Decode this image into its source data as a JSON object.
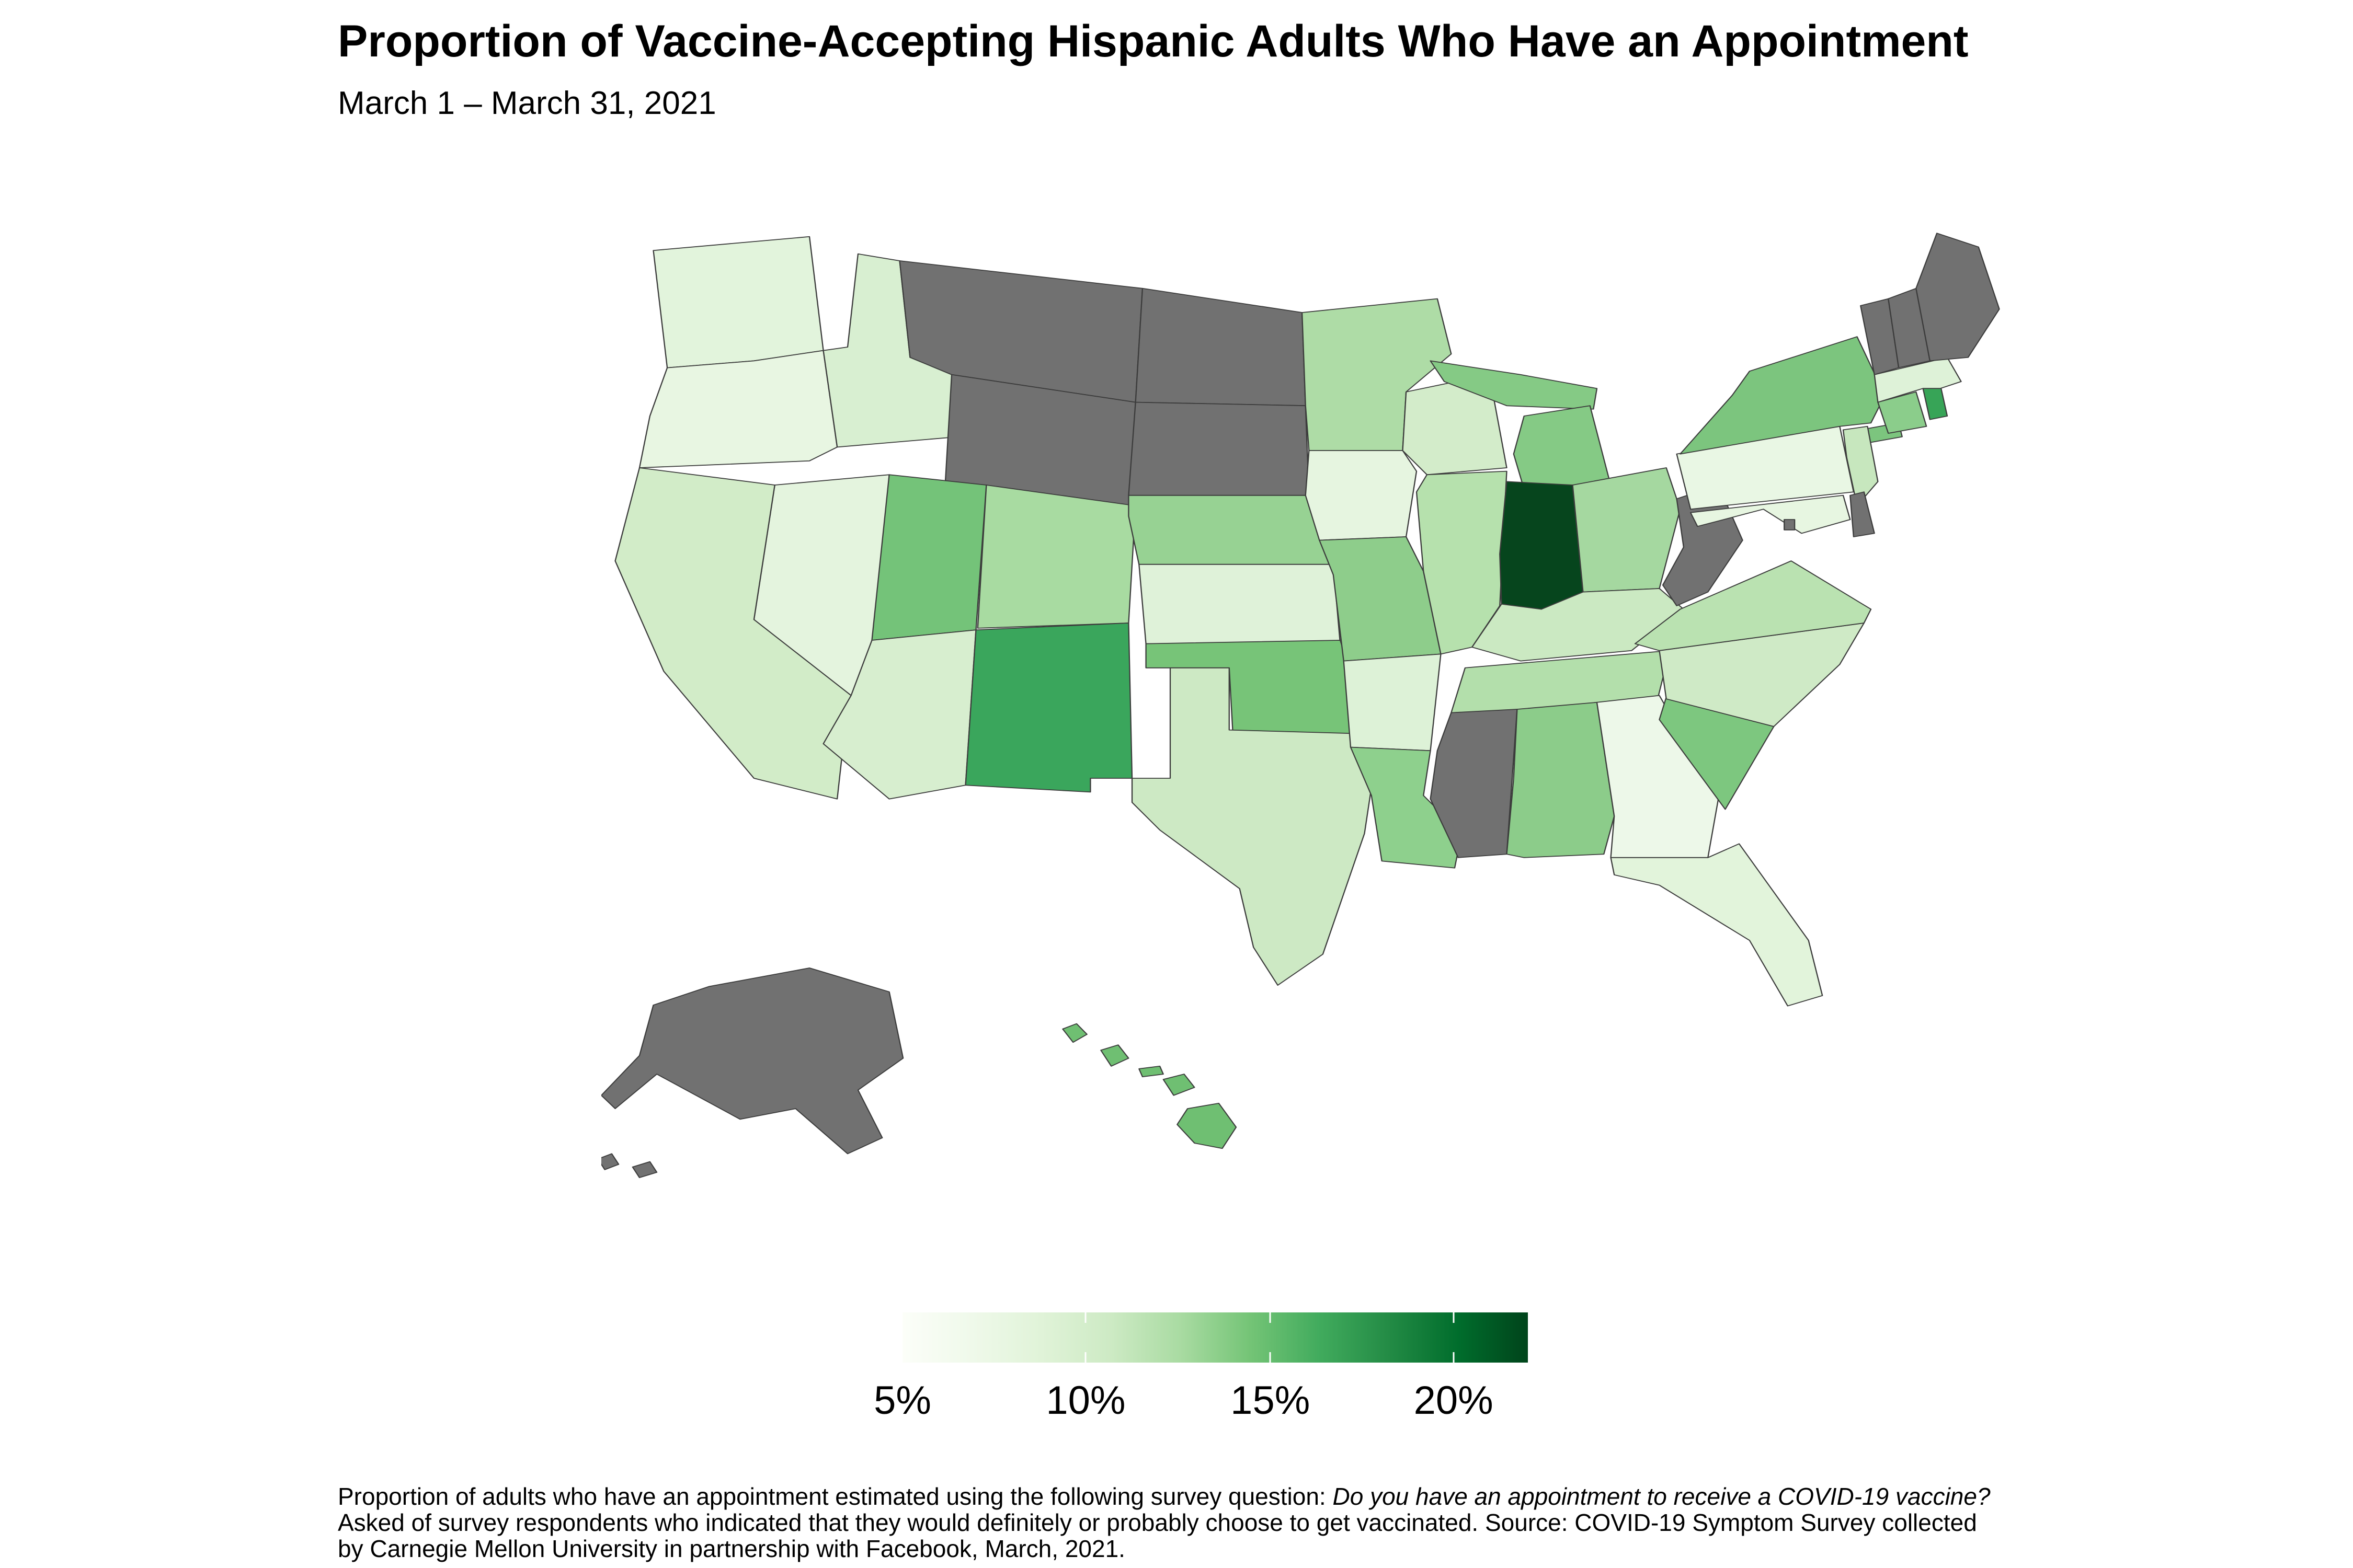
{
  "header": {
    "title": "Proportion of Vaccine-Accepting Hispanic Adults Who Have an Appointment",
    "subtitle": "March 1 – March 31, 2021"
  },
  "legend": {
    "min_value": 5,
    "max_value": 22,
    "unit": "%",
    "ticks": [
      {
        "label": "5%",
        "position_pct": 0,
        "show_mark": false
      },
      {
        "label": "10%",
        "position_pct": 29.3,
        "show_mark": true
      },
      {
        "label": "15%",
        "position_pct": 58.8,
        "show_mark": true
      },
      {
        "label": "20%",
        "position_pct": 88.1,
        "show_mark": true
      }
    ],
    "gradient": [
      "#fcfef9",
      "#eff9ea",
      "#e0f3d8",
      "#cdeac4",
      "#a9dba2",
      "#74c476",
      "#41ab5d",
      "#238b45",
      "#006d2c",
      "#00441b"
    ],
    "na_color": "#717171",
    "border_color": "#3c3c3c"
  },
  "footnote": {
    "line1_prefix": "Proportion of adults who have an appointment estimated using the following survey question: ",
    "line1_italic": "Do you have an appointment to receive a COVID-19 vaccine?",
    "line2": "Asked of survey respondents who indicated that they would definitely or probably choose to get vaccinated. Source: COVID-19 Symptom Survey collected",
    "line3": "by Carnegie Mellon University in partnership with Facebook, March, 2021."
  },
  "chart_data": {
    "type": "heatmap",
    "subtype": "us-state-choropleth",
    "title": "Proportion of Vaccine-Accepting Hispanic Adults Who Have an Appointment",
    "subtitle": "March 1 – March 31, 2021",
    "value_unit": "percent",
    "value_range": [
      5,
      22
    ],
    "legend_position": "bottom-center",
    "no_data_states_color": "#717171",
    "states": [
      {
        "abbr": "WA",
        "name": "Washington",
        "value": 7.3,
        "color": "#e2f4dc"
      },
      {
        "abbr": "OR",
        "name": "Oregon",
        "value": 7.0,
        "color": "#e8f6e2"
      },
      {
        "abbr": "CA",
        "name": "California",
        "value": 9.0,
        "color": "#d2ecc8"
      },
      {
        "abbr": "NV",
        "name": "Nevada",
        "value": 7.2,
        "color": "#e4f4de"
      },
      {
        "abbr": "ID",
        "name": "Idaho",
        "value": 8.6,
        "color": "#d8efd1"
      },
      {
        "abbr": "MT",
        "name": "Montana",
        "value": null,
        "color": null
      },
      {
        "abbr": "WY",
        "name": "Wyoming",
        "value": null,
        "color": null
      },
      {
        "abbr": "UT",
        "name": "Utah",
        "value": 14.0,
        "color": "#74c379"
      },
      {
        "abbr": "AZ",
        "name": "Arizona",
        "value": 8.7,
        "color": "#d7eecf"
      },
      {
        "abbr": "NM",
        "name": "New Mexico",
        "value": 16.3,
        "color": "#3aa65c"
      },
      {
        "abbr": "CO",
        "name": "Colorado",
        "value": 11.3,
        "color": "#a8dba1"
      },
      {
        "abbr": "ND",
        "name": "North Dakota",
        "value": null,
        "color": null
      },
      {
        "abbr": "SD",
        "name": "South Dakota",
        "value": null,
        "color": null
      },
      {
        "abbr": "NE",
        "name": "Nebraska",
        "value": 12.2,
        "color": "#97d293"
      },
      {
        "abbr": "KS",
        "name": "Kansas",
        "value": 8.1,
        "color": "#dff2d9"
      },
      {
        "abbr": "OK",
        "name": "Oklahoma",
        "value": 13.9,
        "color": "#77c478"
      },
      {
        "abbr": "TX",
        "name": "Texas",
        "value": 9.4,
        "color": "#cde9c4"
      },
      {
        "abbr": "MN",
        "name": "Minnesota",
        "value": 11.0,
        "color": "#aedca6"
      },
      {
        "abbr": "IA",
        "name": "Iowa",
        "value": 7.1,
        "color": "#e6f5e0"
      },
      {
        "abbr": "MO",
        "name": "Missouri",
        "value": 12.7,
        "color": "#8ecd8b"
      },
      {
        "abbr": "AR",
        "name": "Arkansas",
        "value": 8.2,
        "color": "#ddf2d7"
      },
      {
        "abbr": "LA",
        "name": "Louisiana",
        "value": 12.6,
        "color": "#8ed08d"
      },
      {
        "abbr": "WI",
        "name": "Wisconsin",
        "value": 8.9,
        "color": "#d3ecca"
      },
      {
        "abbr": "IL",
        "name": "Illinois",
        "value": 10.7,
        "color": "#b6e1ad"
      },
      {
        "abbr": "MI",
        "name": "Michigan",
        "value": 13.2,
        "color": "#85ca85"
      },
      {
        "abbr": "IN",
        "name": "Indiana",
        "value": 21.9,
        "color": "#06451d"
      },
      {
        "abbr": "OH",
        "name": "Ohio",
        "value": 11.4,
        "color": "#a5d8a0"
      },
      {
        "abbr": "KY",
        "name": "Kentucky",
        "value": 9.6,
        "color": "#cbe9c2"
      },
      {
        "abbr": "TN",
        "name": "Tennessee",
        "value": 10.9,
        "color": "#b3dfab"
      },
      {
        "abbr": "MS",
        "name": "Mississippi",
        "value": null,
        "color": null
      },
      {
        "abbr": "AL",
        "name": "Alabama",
        "value": 12.8,
        "color": "#8ccc8a"
      },
      {
        "abbr": "GA",
        "name": "Georgia",
        "value": 6.5,
        "color": "#edf8e9"
      },
      {
        "abbr": "FL",
        "name": "Florida",
        "value": 7.3,
        "color": "#e2f4db"
      },
      {
        "abbr": "SC",
        "name": "South Carolina",
        "value": 13.6,
        "color": "#7dc77f"
      },
      {
        "abbr": "NC",
        "name": "North Carolina",
        "value": 9.3,
        "color": "#cfeac6"
      },
      {
        "abbr": "VA",
        "name": "Virginia",
        "value": 10.5,
        "color": "#bae2b1"
      },
      {
        "abbr": "WV",
        "name": "West Virginia",
        "value": null,
        "color": null
      },
      {
        "abbr": "MD",
        "name": "Maryland",
        "value": 7.0,
        "color": "#e7f6e1"
      },
      {
        "abbr": "DE",
        "name": "Delaware",
        "value": null,
        "color": null
      },
      {
        "abbr": "DC",
        "name": "District of Columbia",
        "value": null,
        "color": null
      },
      {
        "abbr": "NJ",
        "name": "New Jersey",
        "value": 9.8,
        "color": "#c7e7be"
      },
      {
        "abbr": "PA",
        "name": "Pennsylvania",
        "value": 6.9,
        "color": "#e9f7e4"
      },
      {
        "abbr": "NY",
        "name": "New York",
        "value": 13.7,
        "color": "#7cc57e"
      },
      {
        "abbr": "CT",
        "name": "Connecticut",
        "value": 12.9,
        "color": "#8bcd8b"
      },
      {
        "abbr": "RI",
        "name": "Rhode Island",
        "value": 16.5,
        "color": "#37a457"
      },
      {
        "abbr": "MA",
        "name": "Massachusetts",
        "value": 8.0,
        "color": "#def2d8"
      },
      {
        "abbr": "VT",
        "name": "Vermont",
        "value": null,
        "color": null
      },
      {
        "abbr": "NH",
        "name": "New Hampshire",
        "value": null,
        "color": null
      },
      {
        "abbr": "ME",
        "name": "Maine",
        "value": null,
        "color": null
      },
      {
        "abbr": "AK",
        "name": "Alaska",
        "value": null,
        "color": null
      },
      {
        "abbr": "HI",
        "name": "Hawaii",
        "value": 14.2,
        "color": "#6fbf72"
      }
    ]
  }
}
